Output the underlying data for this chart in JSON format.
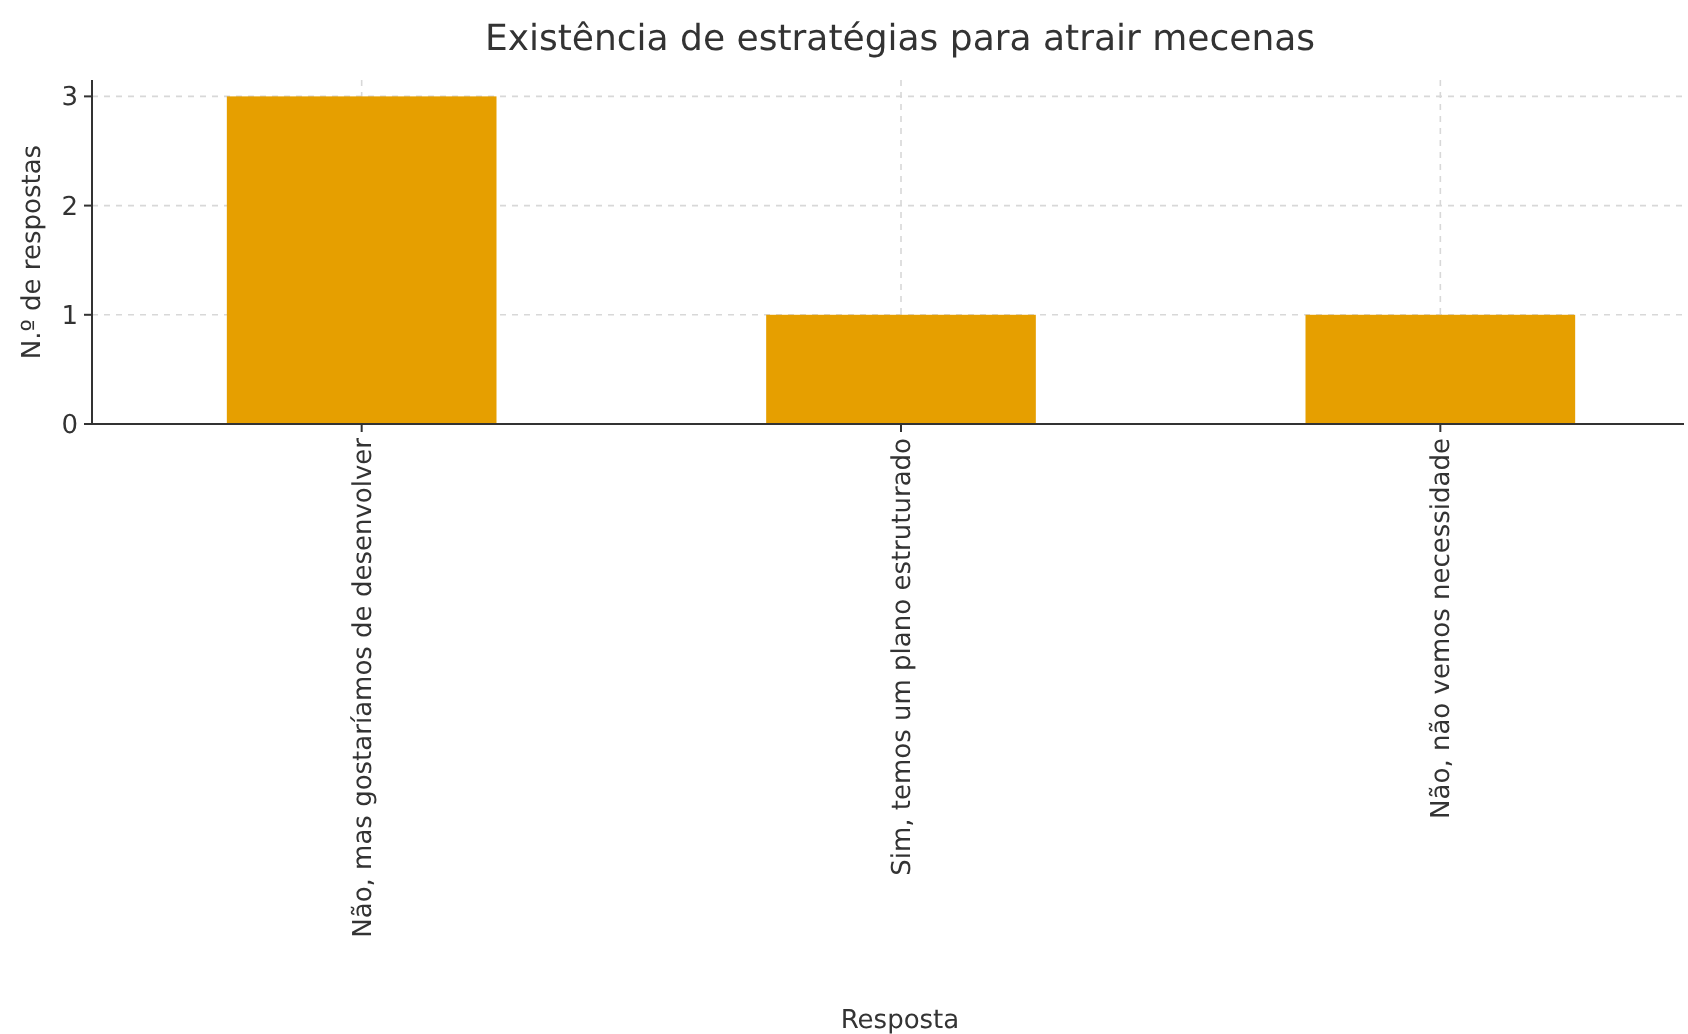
{
  "chart_data": {
    "type": "bar",
    "title": "Existência de estratégias para atrair mecenas",
    "xlabel": "Resposta",
    "ylabel": "N.º de respostas",
    "categories": [
      "Não, mas gostaríamos de desenvolver",
      "Sim, temos um plano estruturado",
      "Não, não vemos necessidade"
    ],
    "values": [
      3,
      1,
      1
    ],
    "color": "#e69f00",
    "ylim": [
      0,
      3.15
    ],
    "yticks": [
      0,
      1,
      2,
      3
    ],
    "grid": true
  }
}
